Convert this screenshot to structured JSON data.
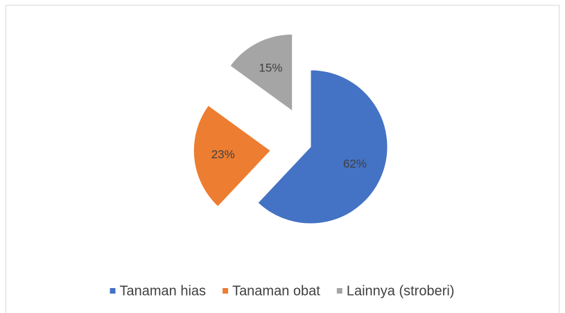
{
  "chart_data": {
    "type": "pie",
    "categories": [
      "Tanaman hias",
      "Tanaman obat",
      "Lainnya (stroberi)"
    ],
    "values": [
      62,
      23,
      15
    ],
    "value_labels": [
      "62%",
      "23%",
      "15%"
    ],
    "colors": [
      "#4472c4",
      "#ed7d31",
      "#a5a5a5"
    ],
    "exploded": [
      false,
      true,
      true
    ],
    "legend": "bottom"
  }
}
